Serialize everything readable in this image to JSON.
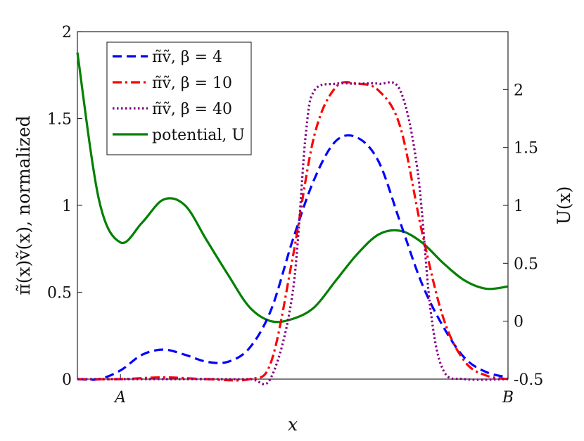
{
  "chart_data": {
    "type": "line",
    "xlabel": "x",
    "ylabel_left": "π̃(x)ṽ(x), normalized",
    "ylabel_right": "U(x)",
    "x_ticks": [
      {
        "x": 0.1,
        "label": "A"
      },
      {
        "x": 1.0,
        "label": "B"
      }
    ],
    "xlim": [
      0,
      1
    ],
    "ylim_left": [
      0,
      2
    ],
    "ylim_right": [
      -0.5,
      2.5
    ],
    "yticks_left": [
      {
        "v": 0,
        "label": "0"
      },
      {
        "v": 0.5,
        "label": "0.5"
      },
      {
        "v": 1,
        "label": "1"
      },
      {
        "v": 1.5,
        "label": "1.5"
      },
      {
        "v": 2,
        "label": "2"
      }
    ],
    "yticks_right": [
      {
        "v": -0.5,
        "label": "-0.5"
      },
      {
        "v": 0,
        "label": "0"
      },
      {
        "v": 0.5,
        "label": "0.5"
      },
      {
        "v": 1,
        "label": "1"
      },
      {
        "v": 1.5,
        "label": "1.5"
      },
      {
        "v": 2,
        "label": "2"
      }
    ],
    "grid": false,
    "legend_placement": "top-left",
    "series": [
      {
        "name": "π̃ṽ, β = 4",
        "axis": "left",
        "color": "#0000ff",
        "dash": "dashed",
        "x": [
          0.0,
          0.05,
          0.1,
          0.15,
          0.2,
          0.25,
          0.3,
          0.35,
          0.4,
          0.45,
          0.5,
          0.55,
          0.6,
          0.65,
          0.7,
          0.75,
          0.8,
          0.85,
          0.9,
          0.95,
          1.0
        ],
        "y": [
          0.0,
          0.0,
          0.05,
          0.14,
          0.17,
          0.14,
          0.1,
          0.1,
          0.18,
          0.4,
          0.8,
          1.15,
          1.37,
          1.39,
          1.25,
          0.9,
          0.55,
          0.3,
          0.12,
          0.04,
          0.01
        ]
      },
      {
        "name": "π̃ṽ, β = 10",
        "axis": "left",
        "color": "#ff0000",
        "dash": "dashdot",
        "x": [
          0.0,
          0.1,
          0.2,
          0.3,
          0.4,
          0.45,
          0.5,
          0.55,
          0.6,
          0.65,
          0.7,
          0.75,
          0.8,
          0.85,
          0.9,
          0.95,
          1.0
        ],
        "y": [
          0.0,
          0.0,
          0.01,
          0.0,
          0.0,
          0.1,
          0.7,
          1.4,
          1.68,
          1.7,
          1.66,
          1.45,
          0.85,
          0.35,
          0.1,
          0.02,
          0.0
        ]
      },
      {
        "name": "π̃ṽ, β = 40",
        "axis": "left",
        "color": "#800080",
        "dash": "dotted",
        "x": [
          0.0,
          0.1,
          0.2,
          0.3,
          0.4,
          0.45,
          0.5,
          0.53,
          0.55,
          0.6,
          0.65,
          0.7,
          0.75,
          0.79,
          0.82,
          0.85,
          0.9,
          1.0
        ],
        "y": [
          0.0,
          0.0,
          0.0,
          0.0,
          0.0,
          0.01,
          0.5,
          1.4,
          1.66,
          1.7,
          1.7,
          1.7,
          1.66,
          1.2,
          0.4,
          0.05,
          0.0,
          0.0
        ]
      },
      {
        "name": "potential, U",
        "axis": "right",
        "color": "#008000",
        "dash": "solid",
        "x": [
          0.0,
          0.05,
          0.1,
          0.15,
          0.2,
          0.25,
          0.3,
          0.35,
          0.4,
          0.45,
          0.5,
          0.55,
          0.6,
          0.65,
          0.7,
          0.75,
          0.8,
          0.85,
          0.9,
          0.95,
          1.0
        ],
        "y": [
          2.32,
          1.05,
          0.68,
          0.85,
          1.05,
          1.0,
          0.7,
          0.4,
          0.12,
          0.0,
          0.02,
          0.12,
          0.35,
          0.58,
          0.75,
          0.78,
          0.68,
          0.5,
          0.35,
          0.28,
          0.3
        ]
      }
    ]
  }
}
